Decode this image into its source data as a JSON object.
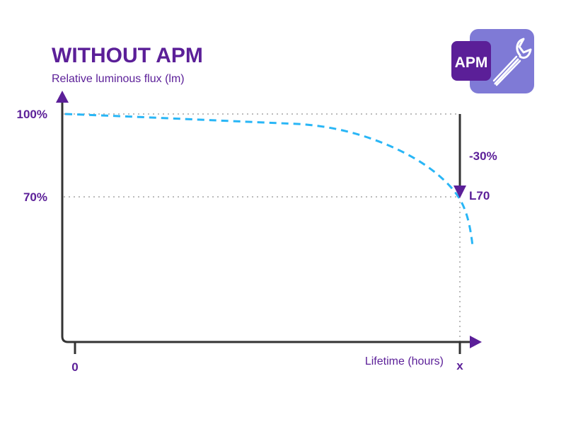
{
  "title": "WITHOUT APM",
  "y_axis_label": "Relative luminous flux (lm)",
  "x_axis_label": "Lifetime (hours)",
  "y_ticks": [
    "100%",
    "70%"
  ],
  "x_ticks": [
    "0",
    "x"
  ],
  "drop_label": "-30%",
  "threshold_label": "L70",
  "logo": {
    "text": "APM",
    "icon": "wrench-icon"
  },
  "colors": {
    "primary": "#5b1f98",
    "logo_bg": "#7f7ad6",
    "curve": "#29b6f6",
    "axis": "#333333",
    "grid": "#bbbbbb"
  }
}
